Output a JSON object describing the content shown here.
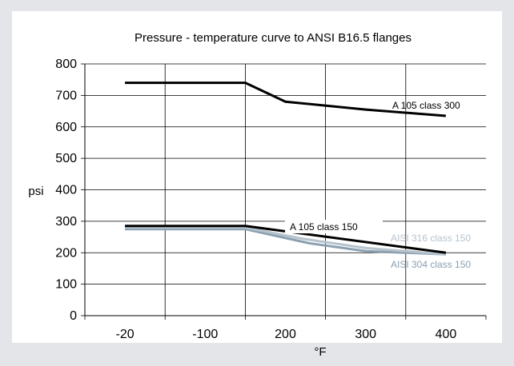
{
  "chart_data": {
    "type": "line",
    "title": "Pressure - temperature curve to ANSI B16.5 flanges",
    "xlabel": "°F",
    "ylabel": "psi",
    "categories": [
      "-20",
      "-100",
      "200",
      "300",
      "400"
    ],
    "ylim": [
      0,
      800
    ],
    "yticks": [
      "0",
      "100",
      "200",
      "300",
      "400",
      "500",
      "600",
      "700",
      "800"
    ],
    "grid": true,
    "series": [
      {
        "name": "A 105 class 300",
        "color": "#000000",
        "points": [
          [
            0,
            740
          ],
          [
            1.5,
            740
          ],
          [
            2.0,
            680
          ],
          [
            3.0,
            655
          ],
          [
            4.0,
            635
          ]
        ]
      },
      {
        "name": "A 105 class 150",
        "color": "#000000",
        "points": [
          [
            0,
            285
          ],
          [
            1.5,
            285
          ],
          [
            4.0,
            200
          ]
        ]
      },
      {
        "name": "AISI 316 class 150",
        "color": "#b7c3cc",
        "points": [
          [
            0,
            280
          ],
          [
            1.5,
            280
          ],
          [
            2.2,
            245
          ],
          [
            3.0,
            215
          ],
          [
            4.0,
            195
          ]
        ]
      },
      {
        "name": "AISI 304 class 150",
        "color": "#8aa0b1",
        "points": [
          [
            0,
            275
          ],
          [
            1.5,
            275
          ],
          [
            2.3,
            230
          ],
          [
            3.0,
            205
          ],
          [
            4.0,
            195
          ]
        ]
      }
    ]
  }
}
